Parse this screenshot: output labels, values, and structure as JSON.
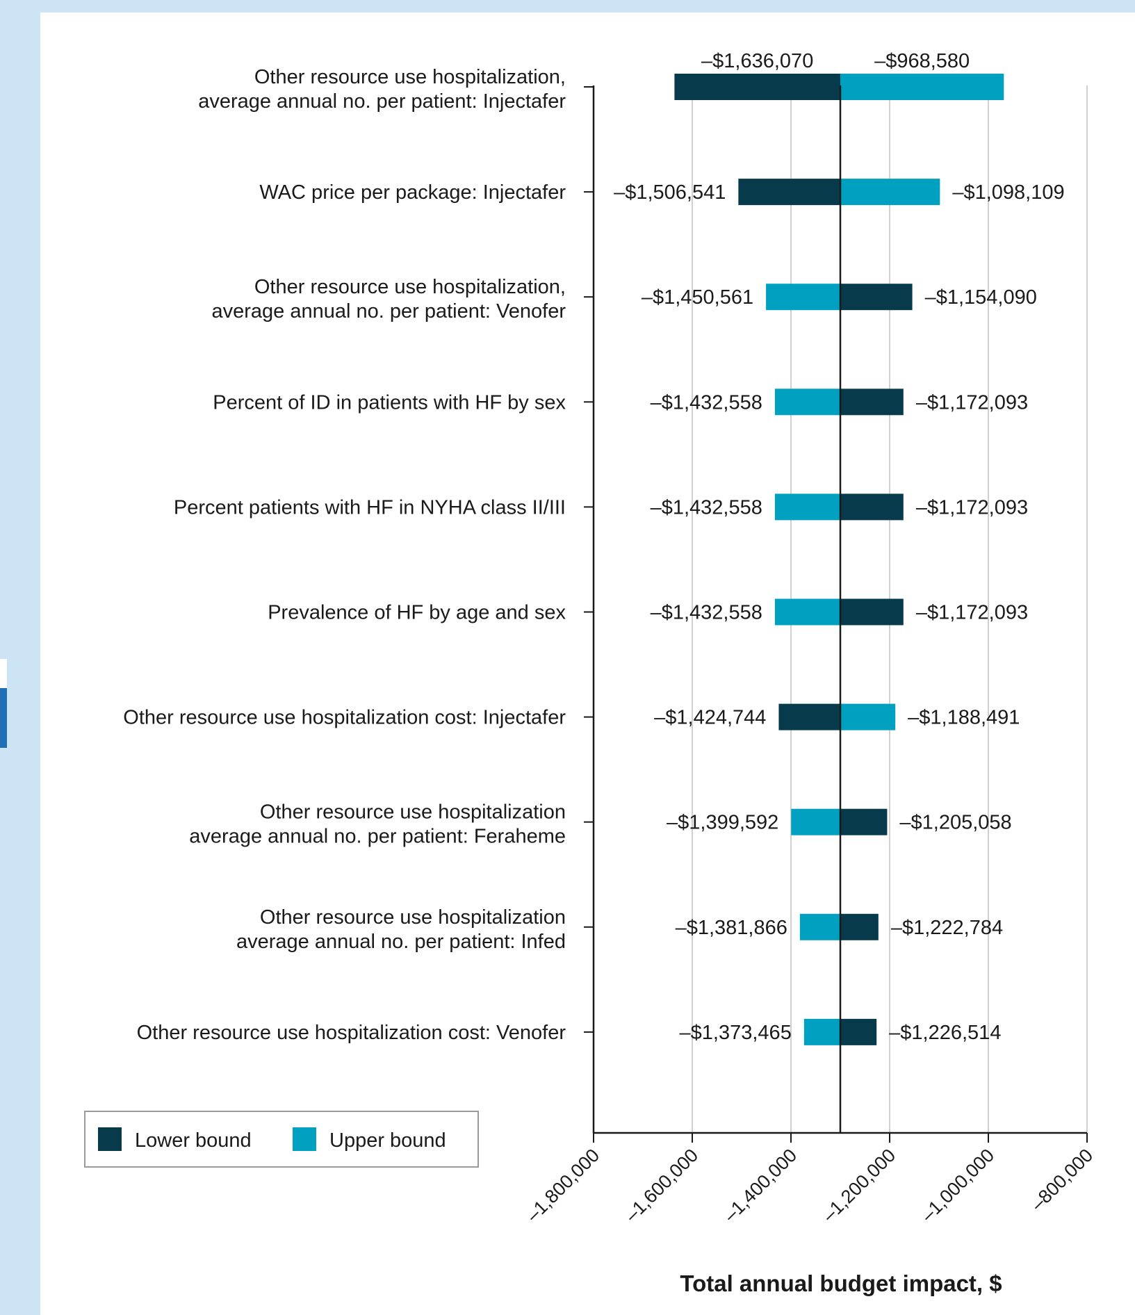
{
  "chart_data": {
    "type": "bar",
    "orientation": "horizontal",
    "subtype": "tornado",
    "xlabel": "Total annual budget impact, $",
    "xlim": [
      -1800000,
      -800000
    ],
    "base_value": -1300000,
    "x_ticks": [
      -1800000,
      -1600000,
      -1400000,
      -1200000,
      -1000000,
      -800000
    ],
    "x_tick_labels": [
      "–1,800,000",
      "–1,600,000",
      "–1,400,000",
      "–1,200,000",
      "–1,000,000",
      "–800,000"
    ],
    "grid": "vertical",
    "legend_position": "bottom-left",
    "categories": [
      [
        "Other resource use hospitalization,",
        "average annual no. per patient: Injectafer"
      ],
      [
        "WAC price per package: Injectafer"
      ],
      [
        "Other resource use hospitalization,",
        "average annual no. per patient: Venofer"
      ],
      [
        "Percent of ID in patients with HF by sex"
      ],
      [
        "Percent patients with HF in NYHA class II/III"
      ],
      [
        "Prevalence of HF by age and sex"
      ],
      [
        "Other resource use hospitalization cost: Injectafer"
      ],
      [
        "Other resource use hospitalization",
        "average annual no. per patient: Feraheme"
      ],
      [
        "Other resource use hospitalization",
        "average annual no. per patient: Infed"
      ],
      [
        "Other resource use hospitalization cost: Venofer"
      ]
    ],
    "series": [
      {
        "name": "Lower bound",
        "color": "#073b4c",
        "values": [
          -1636070,
          -1506541,
          -1154090,
          -1172093,
          -1172093,
          -1172093,
          -1424744,
          -1205058,
          -1222784,
          -1226514
        ],
        "labels": [
          "–$1,636,070",
          "–$1,506,541",
          "–$1,154,090",
          "–$1,172,093",
          "–$1,172,093",
          "–$1,172,093",
          "–$1,424,744",
          "–$1,205,058",
          "–$1,222,784",
          "–$1,226,514"
        ]
      },
      {
        "name": "Upper bound",
        "color": "#00a0c0",
        "values": [
          -968580,
          -1098109,
          -1450561,
          -1432558,
          -1432558,
          -1432558,
          -1188491,
          -1399592,
          -1381866,
          -1373465
        ],
        "labels": [
          "–$968,580",
          "–$1,098,109",
          "–$1,450,561",
          "–$1,432,558",
          "–$1,432,558",
          "–$1,432,558",
          "–$1,188,491",
          "–$1,399,592",
          "–$1,381,866",
          "–$1,373,465"
        ]
      }
    ]
  }
}
